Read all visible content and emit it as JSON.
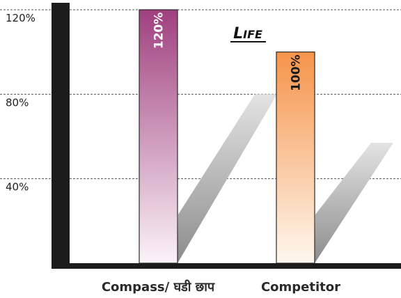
{
  "chart_data": {
    "type": "bar",
    "title": "Life",
    "categories": [
      "Compass/ घडी छाप",
      "Competitor"
    ],
    "values": [
      120,
      100
    ],
    "data_labels": [
      "120%",
      "100%"
    ],
    "ylim": [
      0,
      120
    ],
    "yticks": [
      40,
      80,
      120
    ],
    "ytick_labels": [
      "40%",
      "80%",
      "120%"
    ],
    "grid": true,
    "bar_colors": [
      {
        "top": "#a0407f",
        "bottom": "#fbf3f8",
        "label_color": "#ffffff"
      },
      {
        "top": "#f5944a",
        "bottom": "#fff7ee",
        "label_color": "#1a1a1a"
      }
    ]
  }
}
